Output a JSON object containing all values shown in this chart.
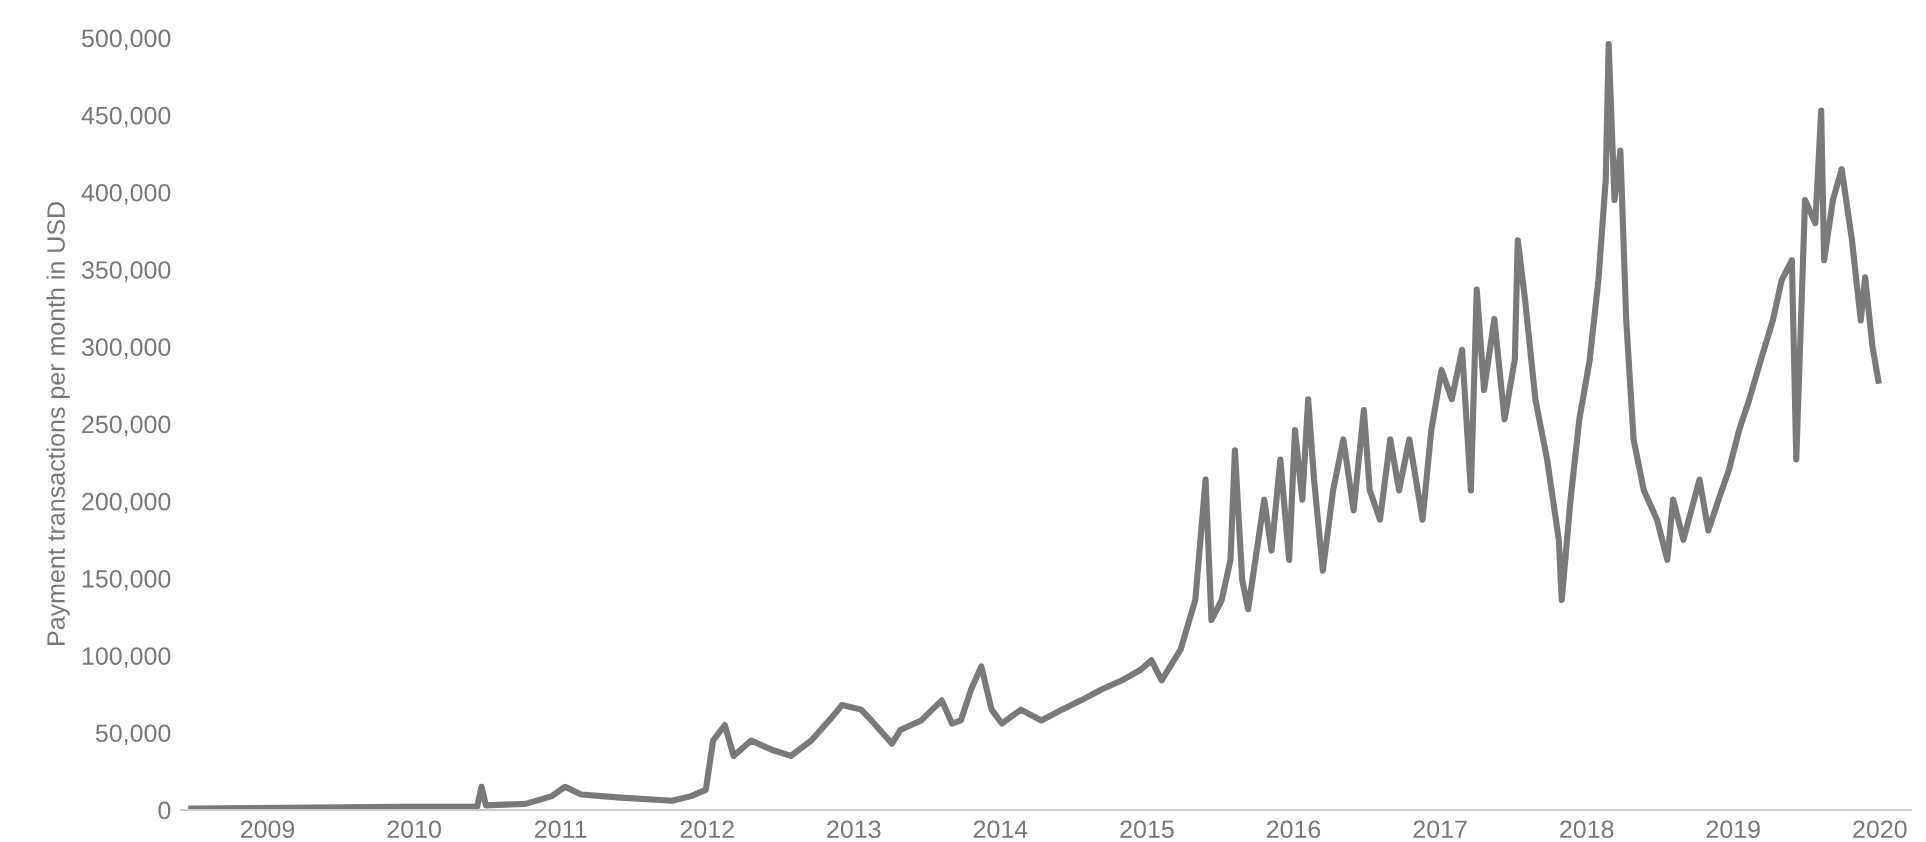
{
  "chart_data": {
    "type": "line",
    "ylabel": "Payment transactions per month in USD",
    "xlim": [
      2008.41,
      2020.21
    ],
    "ylim": [
      0,
      500000
    ],
    "xticks": [
      2009,
      2010,
      2011,
      2012,
      2013,
      2014,
      2015,
      2016,
      2017,
      2018,
      2019,
      2020
    ],
    "yticks": [
      0,
      {
        "value": 50000,
        "label": "50,000"
      },
      {
        "value": 100000,
        "label": "100,000"
      },
      {
        "value": 150000,
        "label": "150,000"
      },
      {
        "value": 200000,
        "label": "200,000"
      },
      {
        "value": 250000,
        "label": "250,000"
      },
      {
        "value": 300000,
        "label": "300,000"
      },
      {
        "value": 350000,
        "label": "350,000"
      },
      {
        "value": 400000,
        "label": "400,000"
      },
      {
        "value": 450000,
        "label": "450,000"
      },
      {
        "value": 500000,
        "label": "500,000"
      }
    ],
    "grid": false,
    "marker": "none",
    "line_style": "solid",
    "x": [
      2008.48,
      2009.91,
      2010.43,
      2010.46,
      2010.49,
      2010.76,
      2010.94,
      2011.03,
      2011.14,
      2011.41,
      2011.76,
      2011.89,
      2011.99,
      2012.04,
      2012.12,
      2012.18,
      2012.3,
      2012.44,
      2012.57,
      2012.71,
      2012.85,
      2012.92,
      2013.05,
      2013.12,
      2013.26,
      2013.32,
      2013.46,
      2013.6,
      2013.67,
      2013.73,
      2013.8,
      2013.87,
      2013.94,
      2014.01,
      2014.14,
      2014.28,
      2014.42,
      2014.55,
      2014.69,
      2014.83,
      2014.96,
      2015.03,
      2015.1,
      2015.23,
      2015.33,
      2015.4,
      2015.44,
      2015.51,
      2015.57,
      2015.6,
      2015.65,
      2015.69,
      2015.76,
      2015.8,
      2015.85,
      2015.91,
      2015.97,
      2016.01,
      2016.06,
      2016.1,
      2016.14,
      2016.2,
      2016.27,
      2016.34,
      2016.41,
      2016.48,
      2016.52,
      2016.59,
      2016.66,
      2016.72,
      2016.79,
      2016.88,
      2016.94,
      2017.01,
      2017.08,
      2017.15,
      2017.21,
      2017.25,
      2017.3,
      2017.37,
      2017.44,
      2017.51,
      2017.53,
      2017.58,
      2017.65,
      2017.73,
      2017.81,
      2017.83,
      2017.89,
      2017.95,
      2018.02,
      2018.08,
      2018.13,
      2018.15,
      2018.19,
      2018.23,
      2018.27,
      2018.32,
      2018.39,
      2018.48,
      2018.55,
      2018.59,
      2018.66,
      2018.77,
      2018.83,
      2018.9,
      2018.97,
      2019.04,
      2019.11,
      2019.19,
      2019.27,
      2019.33,
      2019.4,
      2019.43,
      2019.49,
      2019.56,
      2019.6,
      2019.62,
      2019.68,
      2019.74,
      2019.81,
      2019.87,
      2019.9,
      2019.95,
      2019.99
    ],
    "series": [
      {
        "color": "#7a7a7a",
        "values": [
          1000,
          2000,
          2000,
          15000,
          3000,
          4000,
          9000,
          15000,
          10000,
          8000,
          6000,
          9000,
          13000,
          45000,
          55000,
          35000,
          45000,
          39000,
          35000,
          45000,
          60000,
          68000,
          65000,
          58000,
          43000,
          52000,
          58000,
          71000,
          56000,
          58000,
          78000,
          93000,
          65000,
          56000,
          65000,
          58000,
          65000,
          71000,
          78000,
          84000,
          91000,
          97000,
          84000,
          104000,
          136000,
          214000,
          123000,
          136000,
          162000,
          233000,
          149000,
          130000,
          175000,
          201000,
          168000,
          227000,
          162000,
          246000,
          201000,
          266000,
          214000,
          155000,
          207000,
          240000,
          194000,
          259000,
          207000,
          188000,
          240000,
          207000,
          240000,
          188000,
          246000,
          285000,
          266000,
          298000,
          207000,
          337000,
          272000,
          318000,
          253000,
          292000,
          369000,
          330000,
          266000,
          227000,
          175000,
          136000,
          201000,
          253000,
          291000,
          343000,
          408000,
          496000,
          395000,
          427000,
          317000,
          240000,
          207000,
          188000,
          162000,
          201000,
          175000,
          214000,
          181000,
          201000,
          220000,
          246000,
          266000,
          292000,
          317000,
          343000,
          356000,
          227000,
          395000,
          380000,
          453000,
          356000,
          395000,
          415000,
          369000,
          317000,
          345000,
          300000,
          278000
        ]
      }
    ]
  }
}
